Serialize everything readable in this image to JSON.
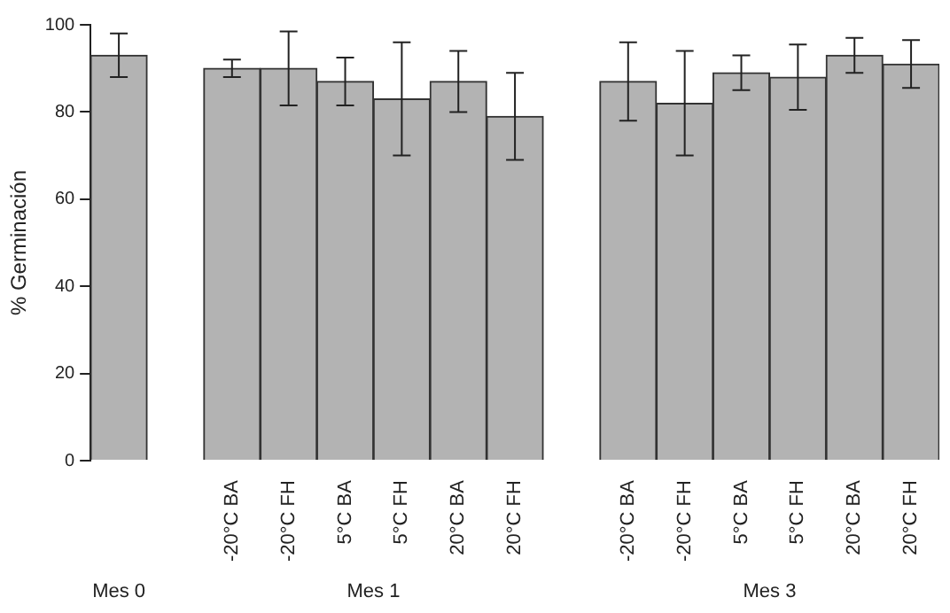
{
  "chart_data": {
    "type": "bar",
    "ylabel": "% Germinación",
    "categories": [
      null,
      null,
      "-20°C BA",
      "-20°C FH",
      "5°C BA",
      "5°C FH",
      "20°C BA",
      "20°C FH",
      null,
      "-20°C BA",
      "-20°C FH",
      "5°C BA",
      "5°C FH",
      "20°C BA",
      "20°C FH"
    ],
    "values": [
      93,
      null,
      90,
      90,
      87,
      83,
      87,
      79,
      null,
      87,
      82,
      89,
      88,
      93,
      91
    ],
    "errors": [
      5,
      null,
      2,
      8.5,
      5.5,
      13,
      7,
      10,
      null,
      9,
      12,
      4,
      7.5,
      4,
      5.5
    ],
    "color": "#b3b3b3",
    "ylim": [
      0,
      100
    ],
    "yticks": [
      0,
      20,
      40,
      60,
      80,
      100
    ],
    "grid": false,
    "legend": false,
    "annotations": [
      "Mes 0",
      "Mes 1",
      "Mes 3"
    ]
  }
}
